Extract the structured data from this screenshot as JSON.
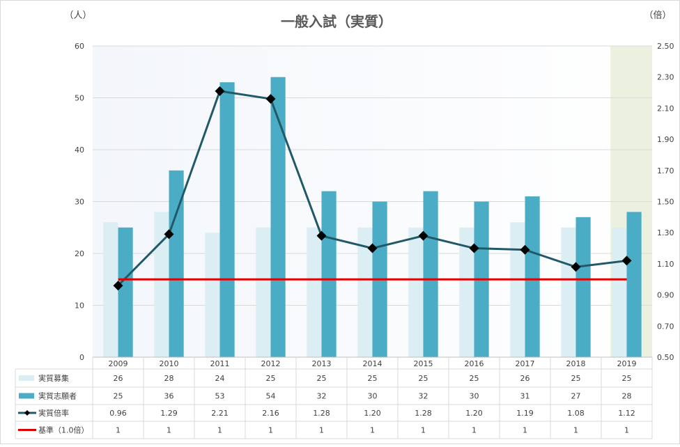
{
  "chart_data": {
    "type": "bar",
    "title": "一般入試（実質）",
    "left_unit": "（人）",
    "right_unit": "（倍）",
    "categories": [
      "2009",
      "2010",
      "2011",
      "2012",
      "2013",
      "2014",
      "2015",
      "2016",
      "2017",
      "2018",
      "2019"
    ],
    "series": [
      {
        "name": "実質募集",
        "type": "bar",
        "axis": "left",
        "color": "#daeef3",
        "values": [
          26,
          28,
          24,
          25,
          25,
          25,
          25,
          25,
          26,
          25,
          25
        ],
        "labels": [
          "26",
          "28",
          "24",
          "25",
          "25",
          "25",
          "25",
          "25",
          "26",
          "25",
          "25"
        ]
      },
      {
        "name": "実質志願者",
        "type": "bar",
        "axis": "left",
        "color": "#4bacc6",
        "values": [
          25,
          36,
          53,
          54,
          32,
          30,
          32,
          30,
          31,
          27,
          28
        ],
        "labels": [
          "25",
          "36",
          "53",
          "54",
          "32",
          "30",
          "32",
          "30",
          "31",
          "27",
          "28"
        ]
      },
      {
        "name": "実質倍率",
        "type": "line",
        "axis": "right",
        "color": "#215968",
        "marker": "diamond",
        "values": [
          0.96,
          1.29,
          2.21,
          2.16,
          1.28,
          1.2,
          1.28,
          1.2,
          1.19,
          1.08,
          1.12
        ],
        "labels": [
          "0.96",
          "1.29",
          "2.21",
          "2.16",
          "1.28",
          "1.20",
          "1.28",
          "1.20",
          "1.19",
          "1.08",
          "1.12"
        ]
      },
      {
        "name": "基準（1.0倍）",
        "type": "line",
        "axis": "right",
        "color": "#e00000",
        "values": [
          1,
          1,
          1,
          1,
          1,
          1,
          1,
          1,
          1,
          1,
          1
        ],
        "labels": [
          "1",
          "1",
          "1",
          "1",
          "1",
          "1",
          "1",
          "1",
          "1",
          "1",
          "1"
        ]
      }
    ],
    "y_left": {
      "min": 0,
      "max": 60,
      "ticks": [
        "0",
        "10",
        "20",
        "30",
        "40",
        "50",
        "60"
      ]
    },
    "y_right": {
      "min": 0.5,
      "max": 2.5,
      "ticks": [
        "0.50",
        "0.70",
        "0.90",
        "1.10",
        "1.30",
        "1.50",
        "1.70",
        "1.90",
        "2.10",
        "2.30",
        "2.50"
      ]
    },
    "grid": true,
    "highlight_category": "2019",
    "highlight_color": "#ebf1de",
    "legend": "data-table below plot"
  }
}
